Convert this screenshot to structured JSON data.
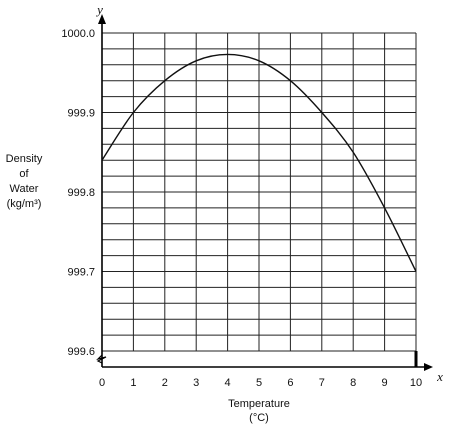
{
  "chart_data": {
    "type": "line",
    "title": "",
    "xlabel_lines": [
      "Temperature",
      "(°C)"
    ],
    "ylabel_lines": [
      "Density",
      "of",
      "Water",
      "(kg/m³)"
    ],
    "x_axis_letter": "x",
    "y_axis_letter": "y",
    "xlim": [
      0,
      10
    ],
    "ylim": [
      999.6,
      1000.0
    ],
    "x_ticks": [
      "0",
      "1",
      "2",
      "3",
      "4",
      "5",
      "6",
      "7",
      "8",
      "9",
      "10"
    ],
    "y_ticks": [
      "999.6",
      "999.7",
      "999.8",
      "999.9",
      "1000.0"
    ],
    "grid": true,
    "axis_break": "y-axis near origin",
    "series": [
      {
        "x": [
          0,
          1,
          2,
          3,
          4,
          5,
          6,
          7,
          8,
          9,
          10
        ],
        "values": [
          999.84,
          999.9,
          999.94,
          999.965,
          999.973,
          999.965,
          999.94,
          999.9,
          999.85,
          999.78,
          999.7
        ]
      }
    ]
  }
}
